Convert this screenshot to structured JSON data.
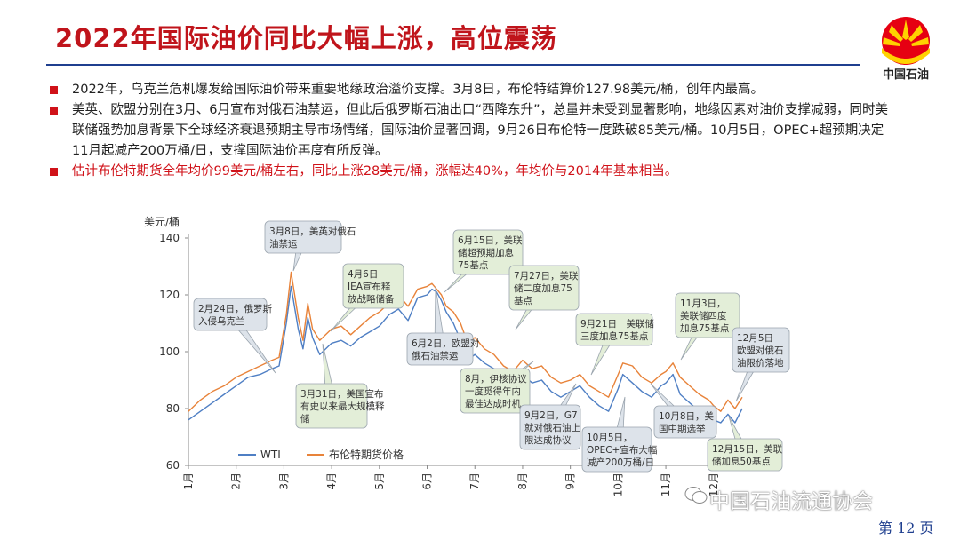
{
  "title": "2022年国际油价同比大幅上涨，高位震荡",
  "logo": {
    "text": "中国石油"
  },
  "bullets": [
    {
      "text": "2022年，乌克兰危机爆发给国际油价带来重要地缘政治溢价支撑。3月8日，布伦特结算价127.98美元/桶，创年内最高。",
      "color": "#222222"
    },
    {
      "text": "美英、欧盟分别在3月、6月宣布对俄石油禁运，但此后俄罗斯石油出口“西降东升”，总量并未受到显著影响，地缘因素对油价支撑减弱，同时美联储强势加息背景下全球经济衰退预期主导市场情绪，国际油价显著回调，9月26日布伦特一度跌破85美元/桶。10月5日，OPEC+超预期决定11月起减产200万桶/日，支撑国际油价再度有所反弹。",
      "color": "#222222"
    },
    {
      "text": "估计布伦特期货全年均价99美元/桶左右，同比上涨28美元/桶，涨幅达40%，年均价与2014年基本相当。",
      "color": "#d01219"
    }
  ],
  "chart_data": {
    "type": "line",
    "ylabel": "美元/桶",
    "ylim": [
      60,
      140
    ],
    "yticks": [
      60,
      80,
      100,
      120,
      140
    ],
    "xlabels": [
      "1月",
      "2月",
      "3月",
      "4月",
      "5月",
      "6月",
      "7月",
      "8月",
      "9月",
      "10月",
      "11月",
      "12月"
    ],
    "x_months": [
      1,
      1.25,
      1.5,
      1.75,
      2,
      2.25,
      2.5,
      2.75,
      2.9,
      3.05,
      3.15,
      3.3,
      3.4,
      3.5,
      3.6,
      3.75,
      4,
      4.2,
      4.4,
      4.6,
      4.8,
      5,
      5.2,
      5.4,
      5.6,
      5.8,
      6,
      6.1,
      6.2,
      6.3,
      6.4,
      6.55,
      6.7,
      6.85,
      7,
      7.2,
      7.4,
      7.6,
      7.8,
      8,
      8.2,
      8.4,
      8.6,
      8.8,
      9,
      9.2,
      9.4,
      9.6,
      9.8,
      10,
      10.1,
      10.3,
      10.5,
      10.7,
      10.9,
      11,
      11.15,
      11.3,
      11.5,
      11.7,
      11.9,
      12,
      12.15,
      12.3,
      12.45,
      12.6
    ],
    "series": [
      {
        "name": "WTI",
        "color": "#4f7fc4",
        "values": [
          76,
          79,
          82,
          85,
          88,
          91,
          92,
          94,
          95,
          110,
          123,
          108,
          101,
          112,
          105,
          99,
          103,
          104,
          102,
          105,
          107,
          109,
          113,
          115,
          111,
          119,
          120,
          122,
          121,
          118,
          114,
          110,
          104,
          97,
          99,
          96,
          94,
          91,
          88,
          92,
          89,
          90,
          86,
          84,
          86,
          88,
          84,
          81,
          79,
          87,
          92,
          89,
          86,
          84,
          88,
          89,
          92,
          85,
          82,
          79,
          77,
          76,
          75,
          78,
          75,
          80
        ]
      },
      {
        "name": "布伦特期货价格",
        "color": "#e8833a",
        "values": [
          79,
          83,
          86,
          88,
          91,
          93,
          95,
          97,
          98,
          113,
          128,
          112,
          104,
          117,
          108,
          104,
          108,
          109,
          106,
          109,
          112,
          114,
          117,
          120,
          116,
          122,
          123,
          124,
          122,
          120,
          116,
          114,
          110,
          103,
          105,
          101,
          99,
          95,
          93,
          97,
          94,
          95,
          91,
          89,
          90,
          92,
          88,
          86,
          84,
          92,
          96,
          95,
          91,
          89,
          92,
          93,
          96,
          91,
          88,
          85,
          83,
          81,
          79,
          83,
          80,
          84
        ]
      }
    ],
    "annotations": [
      {
        "id": "a1",
        "text": "2月24日，俄罗斯入侵乌克兰",
        "fill": "#dde3ea"
      },
      {
        "id": "a2",
        "text": "3月8日，美英对俄石油禁运",
        "fill": "#dde3ea"
      },
      {
        "id": "a3",
        "text": "4月6日IEA宣布释放战略储备",
        "fill": "#e3eed8"
      },
      {
        "id": "a4",
        "text": "3月31日，美国宣布有史以来最大规模释储",
        "fill": "#e3eed8"
      },
      {
        "id": "a5",
        "text": "6月2日，欧盟对俄石油禁运",
        "fill": "#dde3ea"
      },
      {
        "id": "a6",
        "text": "6月15日，美联储超预期加息75基点",
        "fill": "#e3eed8"
      },
      {
        "id": "a7",
        "text": "7月27日，美联储二度加息75基点",
        "fill": "#e3eed8"
      },
      {
        "id": "a8",
        "text": "8月，伊核协议一度觅得年内最佳达成时机",
        "fill": "#e3eed8"
      },
      {
        "id": "a9",
        "text": "9月2日，G7就对俄石油上限达成协议",
        "fill": "#dde3ea"
      },
      {
        "id": "a10",
        "text": "9月21日　美联储三度加息75基点",
        "fill": "#e3eed8"
      },
      {
        "id": "a11",
        "text": "10月5日，OPEC+宣布大幅减产200万桶/日",
        "fill": "#dde3ea"
      },
      {
        "id": "a12",
        "text": "10月8日，美国中期选举",
        "fill": "#dde3ea"
      },
      {
        "id": "a13",
        "text": "11月3日，美联储四度加息75基点",
        "fill": "#e3eed8"
      },
      {
        "id": "a14",
        "text": "12月5日欧盟对俄石油限价落地",
        "fill": "#dde3ea"
      },
      {
        "id": "a15",
        "text": "12月15日，美联储加息50基点",
        "fill": "#e3eed8"
      }
    ]
  },
  "watermark": "中国石油流通协会",
  "page_number": "第 12 页"
}
